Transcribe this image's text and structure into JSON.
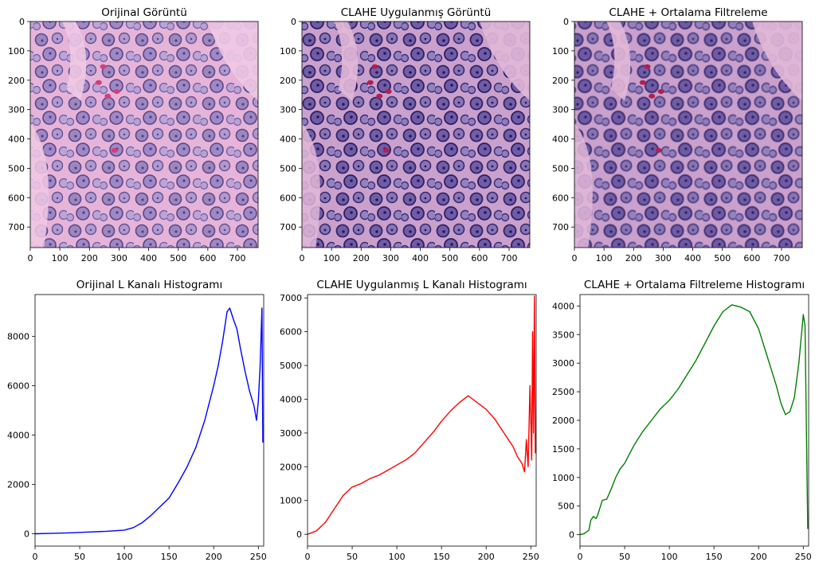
{
  "images": [
    {
      "title": "Orijinal Görüntü",
      "xticks": [
        0,
        100,
        200,
        300,
        400,
        500,
        600,
        700
      ],
      "yticks": [
        0,
        100,
        200,
        300,
        400,
        500,
        600,
        700
      ],
      "xlim": [
        0,
        770
      ],
      "ylim": [
        0,
        770
      ],
      "style": "original"
    },
    {
      "title": "CLAHE Uygulanmış Görüntü",
      "xticks": [
        0,
        100,
        200,
        300,
        400,
        500,
        600,
        700
      ],
      "yticks": [
        0,
        100,
        200,
        300,
        400,
        500,
        600,
        700
      ],
      "xlim": [
        0,
        770
      ],
      "ylim": [
        0,
        770
      ],
      "style": "clahe"
    },
    {
      "title": "CLAHE + Ortalama Filtreleme",
      "xticks": [
        0,
        100,
        200,
        300,
        400,
        500,
        600,
        700
      ],
      "yticks": [
        0,
        100,
        200,
        300,
        400,
        500,
        600,
        700
      ],
      "xlim": [
        0,
        770
      ],
      "ylim": [
        0,
        770
      ],
      "style": "clahe-blur"
    }
  ],
  "chart_data": [
    {
      "type": "line",
      "title": "Orijinal L Kanalı Histogramı",
      "color": "#0000ff",
      "xlim": [
        0,
        256
      ],
      "ylim": [
        -500,
        9700
      ],
      "xticks": [
        0,
        50,
        100,
        150,
        200,
        250
      ],
      "yticks": [
        0,
        2000,
        4000,
        6000,
        8000
      ],
      "points": [
        [
          0,
          0
        ],
        [
          20,
          20
        ],
        [
          40,
          40
        ],
        [
          60,
          70
        ],
        [
          80,
          100
        ],
        [
          100,
          150
        ],
        [
          110,
          250
        ],
        [
          120,
          450
        ],
        [
          130,
          750
        ],
        [
          140,
          1100
        ],
        [
          150,
          1450
        ],
        [
          160,
          2050
        ],
        [
          170,
          2700
        ],
        [
          180,
          3500
        ],
        [
          190,
          4600
        ],
        [
          200,
          6000
        ],
        [
          205,
          6800
        ],
        [
          210,
          7800
        ],
        [
          215,
          9000
        ],
        [
          218,
          9150
        ],
        [
          222,
          8700
        ],
        [
          226,
          8300
        ],
        [
          230,
          7500
        ],
        [
          235,
          6600
        ],
        [
          240,
          5800
        ],
        [
          245,
          5200
        ],
        [
          248,
          4600
        ],
        [
          250,
          5400
        ],
        [
          252,
          6800
        ],
        [
          254,
          9150
        ],
        [
          255,
          3700
        ]
      ]
    },
    {
      "type": "line",
      "title": "CLAHE Uygulanmış L Kanalı Histogramı",
      "color": "#ff0000",
      "xlim": [
        0,
        256
      ],
      "ylim": [
        -350,
        7100
      ],
      "xticks": [
        0,
        50,
        100,
        150,
        200,
        250
      ],
      "yticks": [
        0,
        1000,
        2000,
        3000,
        4000,
        5000,
        6000,
        7000
      ],
      "points": [
        [
          0,
          0
        ],
        [
          10,
          100
        ],
        [
          20,
          350
        ],
        [
          30,
          750
        ],
        [
          40,
          1150
        ],
        [
          50,
          1400
        ],
        [
          60,
          1500
        ],
        [
          70,
          1650
        ],
        [
          80,
          1750
        ],
        [
          90,
          1900
        ],
        [
          100,
          2050
        ],
        [
          110,
          2200
        ],
        [
          120,
          2400
        ],
        [
          130,
          2700
        ],
        [
          140,
          3000
        ],
        [
          150,
          3350
        ],
        [
          160,
          3650
        ],
        [
          170,
          3900
        ],
        [
          180,
          4100
        ],
        [
          185,
          4000
        ],
        [
          190,
          3900
        ],
        [
          200,
          3700
        ],
        [
          210,
          3400
        ],
        [
          220,
          3000
        ],
        [
          230,
          2600
        ],
        [
          235,
          2300
        ],
        [
          240,
          2100
        ],
        [
          243,
          1850
        ],
        [
          245,
          2800
        ],
        [
          247,
          2000
        ],
        [
          249,
          4400
        ],
        [
          251,
          2200
        ],
        [
          252,
          6000
        ],
        [
          253,
          3000
        ],
        [
          254,
          7050
        ],
        [
          255,
          2400
        ]
      ]
    },
    {
      "type": "line",
      "title": "CLAHE + Ortalama Filtreleme Histogramı",
      "color": "#008000",
      "xlim": [
        0,
        256
      ],
      "ylim": [
        -200,
        4200
      ],
      "xticks": [
        0,
        50,
        100,
        150,
        200,
        250
      ],
      "yticks": [
        0,
        500,
        1000,
        1500,
        2000,
        2500,
        3000,
        3500,
        4000
      ],
      "points": [
        [
          0,
          0
        ],
        [
          5,
          20
        ],
        [
          10,
          80
        ],
        [
          12,
          250
        ],
        [
          15,
          320
        ],
        [
          18,
          280
        ],
        [
          20,
          350
        ],
        [
          25,
          600
        ],
        [
          30,
          620
        ],
        [
          35,
          800
        ],
        [
          40,
          1000
        ],
        [
          45,
          1150
        ],
        [
          50,
          1250
        ],
        [
          55,
          1400
        ],
        [
          60,
          1550
        ],
        [
          70,
          1800
        ],
        [
          80,
          2000
        ],
        [
          90,
          2200
        ],
        [
          100,
          2350
        ],
        [
          110,
          2550
        ],
        [
          120,
          2800
        ],
        [
          130,
          3050
        ],
        [
          140,
          3350
        ],
        [
          150,
          3650
        ],
        [
          160,
          3900
        ],
        [
          170,
          4020
        ],
        [
          180,
          3980
        ],
        [
          190,
          3900
        ],
        [
          200,
          3600
        ],
        [
          210,
          3100
        ],
        [
          220,
          2600
        ],
        [
          225,
          2300
        ],
        [
          230,
          2100
        ],
        [
          235,
          2150
        ],
        [
          240,
          2400
        ],
        [
          245,
          3000
        ],
        [
          250,
          3850
        ],
        [
          252,
          3650
        ],
        [
          254,
          1200
        ],
        [
          255,
          100
        ]
      ]
    }
  ]
}
